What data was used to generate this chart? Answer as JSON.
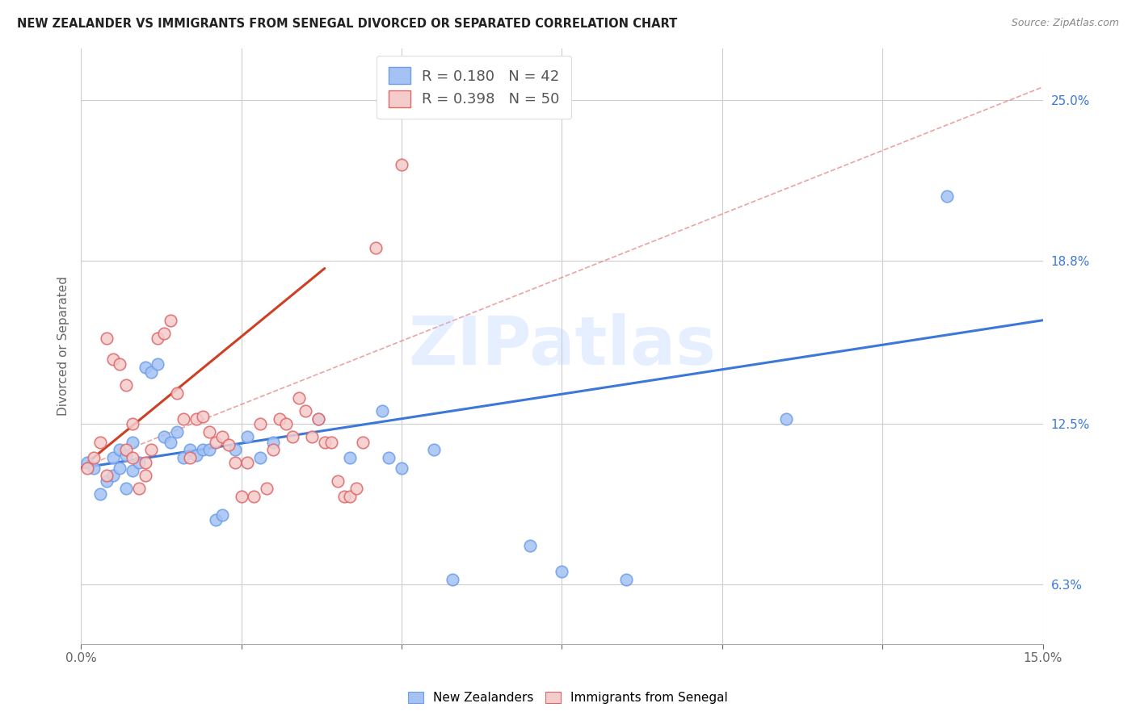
{
  "title": "NEW ZEALANDER VS IMMIGRANTS FROM SENEGAL DIVORCED OR SEPARATED CORRELATION CHART",
  "source": "Source: ZipAtlas.com",
  "ylabel": "Divorced or Separated",
  "right_yticks": [
    "25.0%",
    "18.8%",
    "12.5%",
    "6.3%"
  ],
  "right_ytick_vals": [
    0.25,
    0.188,
    0.125,
    0.063
  ],
  "watermark": "ZIPatlas",
  "nz_color": "#a4c2f4",
  "sg_color": "#f4cccc",
  "nz_edge_color": "#6d9eeb",
  "sg_edge_color": "#e06666",
  "nz_line_color": "#3c78d8",
  "sg_line_color": "#cc4125",
  "dashed_color": "#e06666",
  "nz_scatter": [
    [
      0.001,
      0.11
    ],
    [
      0.002,
      0.108
    ],
    [
      0.003,
      0.098
    ],
    [
      0.004,
      0.103
    ],
    [
      0.005,
      0.112
    ],
    [
      0.005,
      0.105
    ],
    [
      0.006,
      0.115
    ],
    [
      0.006,
      0.108
    ],
    [
      0.007,
      0.113
    ],
    [
      0.007,
      0.1
    ],
    [
      0.008,
      0.118
    ],
    [
      0.008,
      0.107
    ],
    [
      0.009,
      0.11
    ],
    [
      0.01,
      0.147
    ],
    [
      0.011,
      0.145
    ],
    [
      0.012,
      0.148
    ],
    [
      0.013,
      0.12
    ],
    [
      0.014,
      0.118
    ],
    [
      0.015,
      0.122
    ],
    [
      0.016,
      0.112
    ],
    [
      0.017,
      0.115
    ],
    [
      0.018,
      0.113
    ],
    [
      0.019,
      0.115
    ],
    [
      0.02,
      0.115
    ],
    [
      0.021,
      0.088
    ],
    [
      0.022,
      0.09
    ],
    [
      0.024,
      0.115
    ],
    [
      0.026,
      0.12
    ],
    [
      0.028,
      0.112
    ],
    [
      0.03,
      0.118
    ],
    [
      0.037,
      0.127
    ],
    [
      0.042,
      0.112
    ],
    [
      0.047,
      0.13
    ],
    [
      0.048,
      0.112
    ],
    [
      0.05,
      0.108
    ],
    [
      0.055,
      0.115
    ],
    [
      0.058,
      0.065
    ],
    [
      0.07,
      0.078
    ],
    [
      0.075,
      0.068
    ],
    [
      0.085,
      0.065
    ],
    [
      0.11,
      0.127
    ],
    [
      0.135,
      0.213
    ]
  ],
  "sg_scatter": [
    [
      0.001,
      0.108
    ],
    [
      0.002,
      0.112
    ],
    [
      0.003,
      0.118
    ],
    [
      0.004,
      0.105
    ],
    [
      0.004,
      0.158
    ],
    [
      0.005,
      0.15
    ],
    [
      0.006,
      0.148
    ],
    [
      0.007,
      0.14
    ],
    [
      0.007,
      0.115
    ],
    [
      0.008,
      0.125
    ],
    [
      0.008,
      0.112
    ],
    [
      0.009,
      0.1
    ],
    [
      0.01,
      0.105
    ],
    [
      0.01,
      0.11
    ],
    [
      0.011,
      0.115
    ],
    [
      0.012,
      0.158
    ],
    [
      0.013,
      0.16
    ],
    [
      0.014,
      0.165
    ],
    [
      0.015,
      0.137
    ],
    [
      0.016,
      0.127
    ],
    [
      0.017,
      0.112
    ],
    [
      0.018,
      0.127
    ],
    [
      0.019,
      0.128
    ],
    [
      0.02,
      0.122
    ],
    [
      0.021,
      0.118
    ],
    [
      0.022,
      0.12
    ],
    [
      0.023,
      0.117
    ],
    [
      0.024,
      0.11
    ],
    [
      0.025,
      0.097
    ],
    [
      0.026,
      0.11
    ],
    [
      0.027,
      0.097
    ],
    [
      0.028,
      0.125
    ],
    [
      0.029,
      0.1
    ],
    [
      0.03,
      0.115
    ],
    [
      0.031,
      0.127
    ],
    [
      0.032,
      0.125
    ],
    [
      0.033,
      0.12
    ],
    [
      0.034,
      0.135
    ],
    [
      0.035,
      0.13
    ],
    [
      0.036,
      0.12
    ],
    [
      0.037,
      0.127
    ],
    [
      0.038,
      0.118
    ],
    [
      0.039,
      0.118
    ],
    [
      0.04,
      0.103
    ],
    [
      0.041,
      0.097
    ],
    [
      0.042,
      0.097
    ],
    [
      0.043,
      0.1
    ],
    [
      0.044,
      0.118
    ],
    [
      0.046,
      0.193
    ],
    [
      0.05,
      0.225
    ]
  ],
  "xlim": [
    0.0,
    0.15
  ],
  "ylim": [
    0.04,
    0.27
  ],
  "nz_line_x": [
    0.0,
    0.15
  ],
  "nz_line_y": [
    0.108,
    0.165
  ],
  "sg_line_x": [
    0.0,
    0.038
  ],
  "sg_line_y": [
    0.108,
    0.185
  ],
  "dashed_line_x": [
    0.0,
    0.15
  ],
  "dashed_line_y": [
    0.108,
    0.255
  ],
  "xtick_positions": [
    0.0,
    0.025,
    0.05,
    0.075,
    0.1,
    0.125,
    0.15
  ]
}
